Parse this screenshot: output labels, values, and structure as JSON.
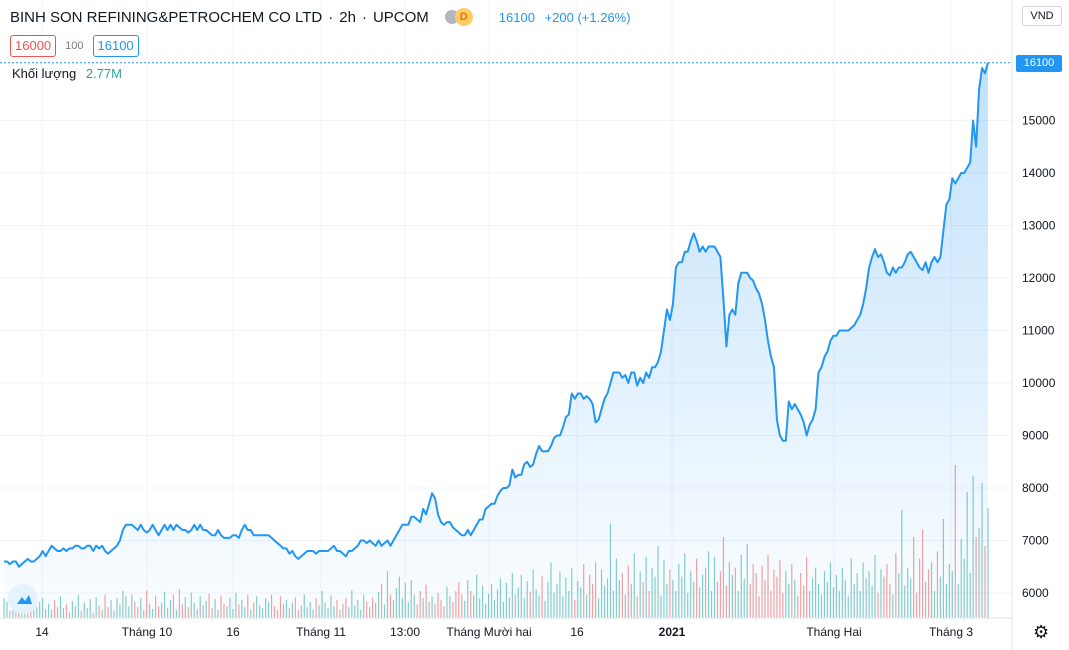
{
  "header": {
    "symbol": "BINH SON REFINING&PETROCHEM CO LTD",
    "interval": "2h",
    "exchange": "UPCOM",
    "toggle_icon": "D",
    "last": "16100",
    "change": "+200 (+1.26%)"
  },
  "quote": {
    "bid": "16000",
    "spread": "100",
    "ask": "16100"
  },
  "volume_legend": {
    "label": "Khối lượng",
    "value": "2.77M"
  },
  "currency": "VND",
  "last_price_tag": "16100",
  "colors": {
    "line": "#2196f3",
    "up_volume": "#26a69a",
    "down_volume": "#ef5350",
    "grid": "#f0f3fa"
  },
  "icons": {
    "logo": "tradingview-cloud-icon",
    "settings": "gear-icon"
  },
  "chart_data": {
    "type": "area",
    "title": "",
    "xlabel": "",
    "ylabel": "",
    "ylim": [
      5500,
      16500
    ],
    "y_ticks": [
      6000,
      7000,
      8000,
      9000,
      10000,
      11000,
      12000,
      13000,
      14000,
      15000
    ],
    "x_tick_labels": [
      "14",
      "Tháng 10",
      "16",
      "Tháng 11",
      "13:00",
      "Tháng Mười hai",
      "16",
      "2021",
      "Tháng Hai",
      "Tháng 3"
    ],
    "x_tick_bold": [
      false,
      false,
      false,
      false,
      false,
      false,
      false,
      true,
      false,
      false
    ],
    "grid": true,
    "series": [
      {
        "values": [
          6600,
          6600,
          6550,
          6600,
          6600,
          6500,
          6550,
          6600,
          6650,
          6600,
          6600,
          6650,
          6700,
          6800,
          6700,
          6800,
          6900,
          6850,
          6800,
          6800,
          6850,
          6800,
          6850,
          6850,
          6900,
          6900,
          6850,
          6850,
          6900,
          6900,
          6800,
          6900,
          6850,
          6900,
          6800,
          6750,
          6800,
          6850,
          6900,
          7000,
          7200,
          7300,
          7300,
          7300,
          7250,
          7200,
          7300,
          7200,
          7150,
          7200,
          7300,
          7200,
          7100,
          7200,
          7300,
          7200,
          7300,
          7200,
          7300,
          7250,
          7200,
          7200,
          7150,
          7200,
          7300,
          7200,
          7300,
          7200,
          7200,
          7150,
          7100,
          7100,
          7200,
          7100,
          7050,
          7050,
          7050,
          7100,
          7100,
          7050,
          7200,
          7300,
          7200,
          7200,
          7100,
          7100,
          7100,
          7100,
          7100,
          7100,
          7050,
          7000,
          6950,
          6900,
          6850,
          6850,
          6750,
          6800,
          6700,
          6650,
          6700,
          6750,
          6800,
          6800,
          6800,
          6750,
          6800,
          6800,
          6800,
          6800,
          6850,
          6900,
          6800,
          6800,
          6750,
          6700,
          6800,
          6800,
          6850,
          6900,
          7000,
          7000,
          6950,
          7000,
          6950,
          6900,
          7000,
          6900,
          6950,
          7000,
          6900,
          7000,
          7100,
          7200,
          7300,
          7300,
          7300,
          7450,
          7450,
          7400,
          7350,
          7600,
          7500,
          7700,
          7900,
          7800,
          7500,
          7350,
          7300,
          7350,
          7350,
          7250,
          7200,
          7150,
          7100,
          7100,
          7200,
          7100,
          7200,
          7300,
          7400,
          7400,
          7600,
          7650,
          7700,
          7700,
          7850,
          7950,
          8000,
          8000,
          8050,
          8350,
          8200,
          8250,
          8250,
          8450,
          8500,
          8400,
          8450,
          8650,
          8800,
          8700,
          8700,
          8700,
          8800,
          8950,
          9000,
          9000,
          9150,
          9350,
          9400,
          9800,
          9700,
          9800,
          9800,
          9700,
          9750,
          9700,
          9600,
          9250,
          9300,
          9500,
          9700,
          9800,
          10000,
          10200,
          10200,
          10200,
          10100,
          10150,
          10000,
          10200,
          10200,
          9950,
          10100,
          10000,
          10200,
          10100,
          10300,
          10300,
          10400,
          10600,
          11000,
          11400,
          11200,
          11500,
          12200,
          12300,
          12300,
          12500,
          12500,
          12700,
          12850,
          12700,
          12500,
          12600,
          12500,
          12600,
          12600,
          12600,
          12500,
          12400,
          11600,
          10700,
          11300,
          11400,
          11300,
          11900,
          12100,
          12100,
          12100,
          12000,
          11950,
          11800,
          11700,
          11500,
          11200,
          10800,
          10500,
          10300,
          9300,
          9000,
          8900,
          8900,
          9650,
          9500,
          9600,
          9500,
          9400,
          9250,
          9000,
          9200,
          9300,
          9500,
          10200,
          10300,
          10500,
          10600,
          10800,
          10900,
          10900,
          11000,
          11000,
          11000,
          11000,
          11050,
          11100,
          11200,
          11300,
          11500,
          11800,
          12200,
          12400,
          12550,
          12400,
          12450,
          12300,
          12100,
          12050,
          12200,
          12100,
          12200,
          12200,
          12300,
          12450,
          12500,
          12400,
          12300,
          12200,
          12150,
          12300,
          12100,
          12300,
          12400,
          12300,
          12400,
          12900,
          13400,
          13500,
          13900,
          13800,
          13900,
          14000,
          14000,
          14100,
          14200,
          15000,
          14500,
          15600,
          16000,
          15900,
          16100
        ]
      }
    ],
    "volume_series": [
      220,
      180,
      80,
      200,
      120,
      160,
      60,
      200,
      140,
      80,
      260,
      120,
      180,
      220,
      100,
      160,
      90,
      200,
      120,
      240,
      110,
      150,
      60,
      190,
      130,
      260,
      80,
      170,
      110,
      210,
      60,
      230,
      140,
      90,
      260,
      120,
      200,
      80,
      220,
      150,
      300,
      240,
      130,
      260,
      180,
      120,
      220,
      90,
      310,
      160,
      100,
      250,
      130,
      170,
      290,
      110,
      200,
      260,
      90,
      320,
      150,
      230,
      120,
      280,
      170,
      100,
      240,
      140,
      190,
      270,
      110,
      210,
      90,
      250,
      160,
      130,
      230,
      100,
      280,
      150,
      200,
      120,
      260,
      90,
      170,
      240,
      140,
      110,
      220,
      180,
      260,
      130,
      90,
      240,
      160,
      200,
      110,
      170,
      230,
      90,
      140,
      260,
      120,
      180,
      90,
      220,
      140,
      300,
      170,
      110,
      250,
      130,
      200,
      90,
      160,
      220,
      120,
      310,
      140,
      200,
      90,
      260,
      180,
      120,
      230,
      170,
      290,
      380,
      150,
      520,
      260,
      200,
      330,
      460,
      220,
      390,
      180,
      420,
      260,
      150,
      300,
      220,
      370,
      180,
      240,
      160,
      280,
      200,
      130,
      350,
      240,
      180,
      300,
      400,
      260,
      190,
      420,
      300,
      250,
      480,
      220,
      360,
      160,
      270,
      380,
      200,
      320,
      440,
      180,
      390,
      230,
      500,
      260,
      340,
      480,
      220,
      410,
      290,
      540,
      320,
      250,
      470,
      190,
      400,
      620,
      280,
      380,
      520,
      240,
      450,
      300,
      560,
      200,
      410,
      340,
      600,
      260,
      480,
      380,
      620,
      220,
      540,
      360,
      440,
      1050,
      300,
      660,
      420,
      500,
      260,
      580,
      380,
      720,
      240,
      520,
      400,
      680,
      300,
      560,
      460,
      800,
      250,
      640,
      380,
      540,
      420,
      300,
      600,
      460,
      720,
      280,
      520,
      400,
      660,
      340,
      480,
      560,
      740,
      300,
      680,
      400,
      520,
      900,
      360,
      620,
      480,
      560,
      300,
      700,
      440,
      820,
      380,
      600,
      500,
      240,
      580,
      420,
      700,
      300,
      540,
      460,
      640,
      280,
      520,
      380,
      600,
      420,
      240,
      500,
      360,
      680,
      300,
      440,
      560,
      380,
      260,
      520,
      400,
      620,
      340,
      480,
      300,
      560,
      420,
      240,
      660,
      380,
      500,
      300,
      620,
      440,
      520,
      360,
      700,
      280,
      540,
      460,
      600,
      380,
      260,
      720,
      500,
      1200,
      360,
      560,
      440,
      900,
      280,
      660,
      980,
      400,
      540,
      620,
      300,
      740,
      460,
      1100,
      380,
      600,
      520,
      1700,
      380,
      880,
      660,
      1400,
      500,
      1580,
      900,
      1000,
      1500,
      800,
      1220
    ]
  }
}
